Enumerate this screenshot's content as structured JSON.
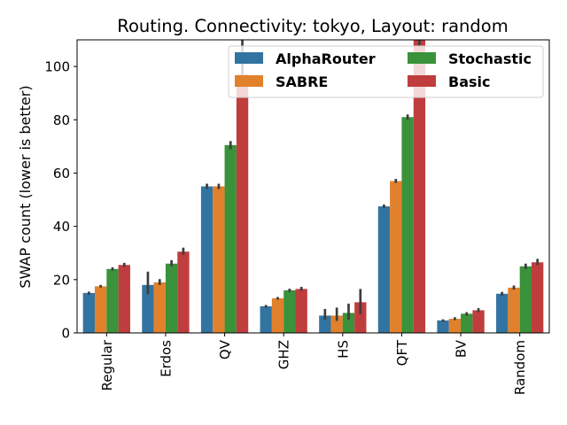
{
  "chart_data": {
    "type": "bar",
    "title": "Routing. Connectivity: tokyo, Layout: random",
    "xlabel": "",
    "ylabel": "SWAP count (lower is better)",
    "ylim": [
      0,
      110
    ],
    "yticks": [
      0,
      20,
      40,
      60,
      80,
      100
    ],
    "categories": [
      "Regular",
      "Erdos",
      "QV",
      "GHZ",
      "HS",
      "QFT",
      "BV",
      "Random"
    ],
    "legend_position": "top-right",
    "series": [
      {
        "name": "AlphaRouter",
        "color": "#3274a1",
        "values": [
          15.0,
          18.0,
          55.0,
          10.0,
          6.5,
          47.5,
          4.7,
          14.7
        ],
        "err_low": [
          14.3,
          14.5,
          54.0,
          9.5,
          5.0,
          46.8,
          4.2,
          14.0
        ],
        "err_high": [
          15.5,
          23.0,
          56.0,
          10.5,
          9.0,
          48.2,
          5.1,
          15.4
        ]
      },
      {
        "name": "SABRE",
        "color": "#e1812c",
        "values": [
          17.5,
          19.0,
          55.0,
          13.0,
          6.5,
          57.0,
          5.3,
          17.0
        ],
        "err_low": [
          17.0,
          18.0,
          54.0,
          12.5,
          4.5,
          56.3,
          4.8,
          16.3
        ],
        "err_high": [
          18.0,
          20.2,
          56.0,
          13.5,
          9.5,
          57.8,
          5.9,
          17.8
        ]
      },
      {
        "name": "Stochastic",
        "color": "#3a923a",
        "values": [
          24.0,
          26.0,
          70.5,
          16.0,
          7.5,
          81.0,
          7.2,
          25.0
        ],
        "err_low": [
          23.4,
          25.0,
          69.0,
          15.4,
          5.0,
          80.0,
          6.5,
          24.0
        ],
        "err_high": [
          24.6,
          27.3,
          72.0,
          16.6,
          11.0,
          82.0,
          7.8,
          26.0
        ]
      },
      {
        "name": "Basic",
        "color": "#c03d3e",
        "values": [
          25.5,
          30.5,
          97.0,
          16.5,
          11.5,
          110.0,
          8.5,
          26.5
        ],
        "err_low": [
          24.8,
          29.3,
          95.0,
          15.8,
          7.0,
          108.0,
          7.8,
          25.5
        ],
        "err_high": [
          26.3,
          32.0,
          110.0,
          17.3,
          16.5,
          110.0,
          9.3,
          27.8
        ]
      }
    ]
  }
}
